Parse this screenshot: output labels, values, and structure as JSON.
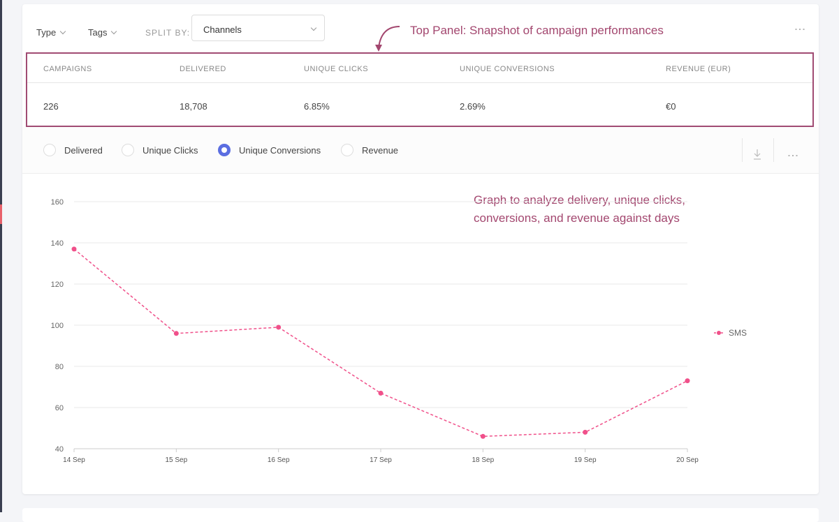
{
  "filters": {
    "type": "Type",
    "tags": "Tags",
    "split_by_label": "SPLIT BY:",
    "split_by_value": "Channels"
  },
  "annotations": {
    "top_panel": "Top Panel: Snapshot of campaign performances",
    "graph_line1": "Graph to analyze delivery, unique clicks,",
    "graph_line2": "conversions, and revenue against days"
  },
  "summary": {
    "headers": [
      "CAMPAIGNS",
      "DELIVERED",
      "UNIQUE CLICKS",
      "UNIQUE CONVERSIONS",
      "REVENUE (EUR)"
    ],
    "values": [
      "226",
      "18,708",
      "6.85%",
      "2.69%",
      "€0"
    ]
  },
  "metrics": [
    {
      "label": "Delivered",
      "selected": false
    },
    {
      "label": "Unique Clicks",
      "selected": false
    },
    {
      "label": "Unique Conversions",
      "selected": true
    },
    {
      "label": "Revenue",
      "selected": false
    }
  ],
  "colors": {
    "series": "#f0508a",
    "accent": "#5b6ee1",
    "annotation": "#a3476f"
  },
  "chart_data": {
    "type": "line",
    "x": [
      "14 Sep",
      "15 Sep",
      "16 Sep",
      "17 Sep",
      "18 Sep",
      "19 Sep",
      "20 Sep"
    ],
    "series": [
      {
        "name": "SMS",
        "values": [
          137,
          96,
          99,
          67,
          46,
          48,
          73
        ]
      }
    ],
    "ylim": [
      40,
      160
    ],
    "yticks": [
      "40",
      "60",
      "80",
      "100",
      "120",
      "140",
      "160"
    ],
    "legend": "right",
    "grid": true
  }
}
